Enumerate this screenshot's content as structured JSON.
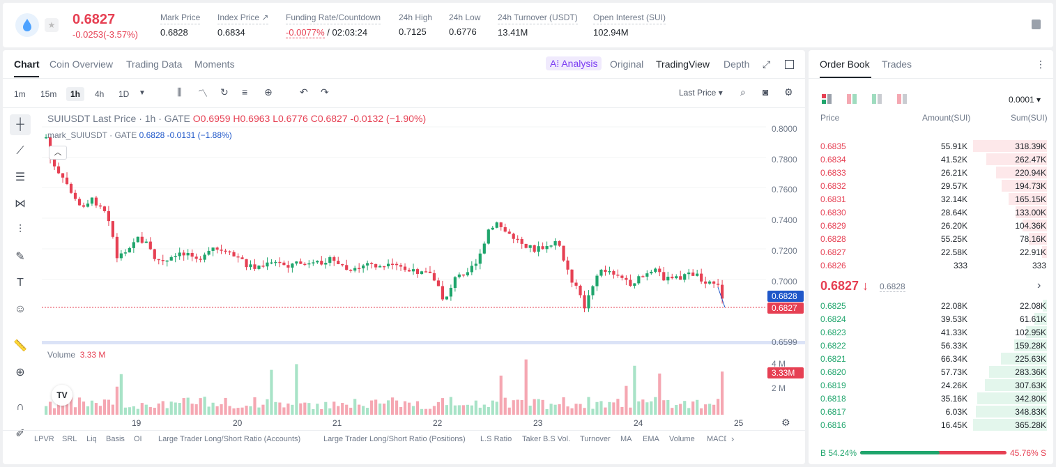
{
  "ticker": {
    "last_price": "0.6827",
    "change": "-0.0253(-3.57%)"
  },
  "stats": [
    {
      "label": "Mark Price",
      "value": "0.6828"
    },
    {
      "label": "Index Price ↗",
      "value": "0.6834"
    },
    {
      "label": "Funding Rate/Countdown",
      "value_red": "-0.0077%",
      "value": " / 02:03:24"
    },
    {
      "label": "24h High",
      "value": "0.7125"
    },
    {
      "label": "24h Low",
      "value": "0.6776"
    },
    {
      "label": "24h Turnover (USDT)",
      "value": "13.41M"
    },
    {
      "label": "Open Interest (SUI)",
      "value": "102.94M"
    }
  ],
  "chart_tabs": [
    "Chart",
    "Coin Overview",
    "Trading Data",
    "Moments"
  ],
  "view_tabs": {
    "ai": "A⁞ Analysis",
    "original": "Original",
    "tradingview": "TradingView",
    "depth": "Depth"
  },
  "timeframes": [
    "1m",
    "15m",
    "1h",
    "4h",
    "1D"
  ],
  "price_type": "Last Price ▾",
  "legend": {
    "symbol": "SUIUSDT Last Price · 1h · GATE",
    "o": "O0.6959",
    "h": "H0.6963",
    "l": "L0.6776",
    "c": "C0.6827",
    "chg": "-0.0132 (−1.90%)",
    "mark_name": "mark_SUIUSDT · GATE",
    "mark_val": "0.6828",
    "mark_chg": "-0.0131 (−1.88%)"
  },
  "y_axis": [
    "0.8000",
    "0.7800",
    "0.7600",
    "0.7400",
    "0.7200",
    "0.7000",
    "0.6599"
  ],
  "price_tags": {
    "mark": "0.6828",
    "last": "0.6827",
    "volume": "3.33M"
  },
  "volume": {
    "label": "Volume",
    "value": "3.33 M",
    "axis": [
      "4 M",
      "2 M"
    ]
  },
  "x_axis": [
    "19",
    "20",
    "21",
    "22",
    "23",
    "24",
    "25"
  ],
  "bottom_bar": [
    "LPVR",
    "SRL",
    "Liq",
    "Basis",
    "OI",
    "Large Trader Long/Short Ratio (Accounts)",
    "Large Trader Long/Short Ratio (Positions)",
    "L.S Ratio",
    "Taker B.S Vol.",
    "Turnover",
    "MA",
    "EMA",
    "Volume",
    "MACD"
  ],
  "order_book": {
    "tabs": [
      "Order Book",
      "Trades"
    ],
    "precision": "0.0001 ▾",
    "headers": [
      "Price",
      "Amount(SUI)",
      "Sum(SUI)"
    ],
    "asks": [
      {
        "price": "0.6835",
        "amount": "55.91K",
        "sum": "318.39K",
        "depth": 1.0
      },
      {
        "price": "0.6834",
        "amount": "41.52K",
        "sum": "262.47K",
        "depth": 0.82
      },
      {
        "price": "0.6833",
        "amount": "26.21K",
        "sum": "220.94K",
        "depth": 0.69
      },
      {
        "price": "0.6832",
        "amount": "29.57K",
        "sum": "194.73K",
        "depth": 0.61
      },
      {
        "price": "0.6831",
        "amount": "32.14K",
        "sum": "165.15K",
        "depth": 0.52
      },
      {
        "price": "0.6830",
        "amount": "28.64K",
        "sum": "133.00K",
        "depth": 0.42
      },
      {
        "price": "0.6829",
        "amount": "26.20K",
        "sum": "104.36K",
        "depth": 0.33
      },
      {
        "price": "0.6828",
        "amount": "55.25K",
        "sum": "78.16K",
        "depth": 0.25
      },
      {
        "price": "0.6827",
        "amount": "22.58K",
        "sum": "22.91K",
        "depth": 0.07
      },
      {
        "price": "0.6826",
        "amount": "333",
        "sum": "333",
        "depth": 0.0
      }
    ],
    "mid": {
      "price": "0.6827 ↓",
      "mark": "0.6828"
    },
    "bids": [
      {
        "price": "0.6825",
        "amount": "22.08K",
        "sum": "22.08K",
        "depth": 0.06
      },
      {
        "price": "0.6824",
        "amount": "39.53K",
        "sum": "61.61K",
        "depth": 0.17
      },
      {
        "price": "0.6823",
        "amount": "41.33K",
        "sum": "102.95K",
        "depth": 0.28
      },
      {
        "price": "0.6822",
        "amount": "56.33K",
        "sum": "159.28K",
        "depth": 0.44
      },
      {
        "price": "0.6821",
        "amount": "66.34K",
        "sum": "225.63K",
        "depth": 0.62
      },
      {
        "price": "0.6820",
        "amount": "57.73K",
        "sum": "283.36K",
        "depth": 0.78
      },
      {
        "price": "0.6819",
        "amount": "24.26K",
        "sum": "307.63K",
        "depth": 0.84
      },
      {
        "price": "0.6818",
        "amount": "35.16K",
        "sum": "342.80K",
        "depth": 0.94
      },
      {
        "price": "0.6817",
        "amount": "6.03K",
        "sum": "348.83K",
        "depth": 0.96
      },
      {
        "price": "0.6816",
        "amount": "16.45K",
        "sum": "365.28K",
        "depth": 1.0
      }
    ],
    "buy_ratio": "B 54.24%",
    "sell_ratio": "45.76% S",
    "buy_fraction": 0.5424
  },
  "colors": {
    "up": "#1fa56c",
    "down": "#e64053",
    "accent": "#7b3df2",
    "mark_line": "#1f57c9"
  }
}
